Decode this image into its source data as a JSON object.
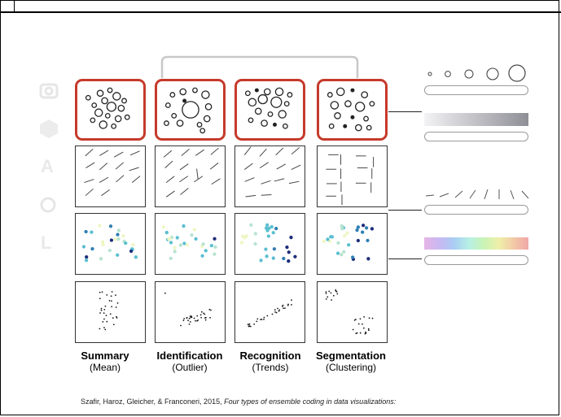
{
  "colors": {
    "highlight": "#c63a2b",
    "ink": "#222222",
    "grey_ramp_start": "#f3f3f5",
    "grey_ramp_end": "#8e8e96",
    "dot_palette": [
      "#1f2d7a",
      "#2f7fb4",
      "#5bbfd0",
      "#b7e3cf",
      "#eef6c4"
    ]
  },
  "background_icons": [
    "camera-icon",
    "cube-icon",
    "text-a-icon",
    "circle-icon",
    "line-icon"
  ],
  "ghost_glyphs": {
    "a": "A",
    "l": "L"
  },
  "tasks": [
    {
      "title": "Summary",
      "subtitle": "(Mean)"
    },
    {
      "title": "Identification",
      "subtitle": "(Outlier)"
    },
    {
      "title": "Recognition",
      "subtitle": "(Trends)"
    },
    {
      "title": "Segmentation",
      "subtitle": "(Clustering)"
    }
  ],
  "encodings": [
    "size",
    "lightness",
    "orientation",
    "color-hue",
    "position"
  ],
  "caption": {
    "authors": "Szafir, Haroz, Gleicher, & Franconeri, 2015, ",
    "title": "Four types of ensemble coding in data visualizations:"
  }
}
